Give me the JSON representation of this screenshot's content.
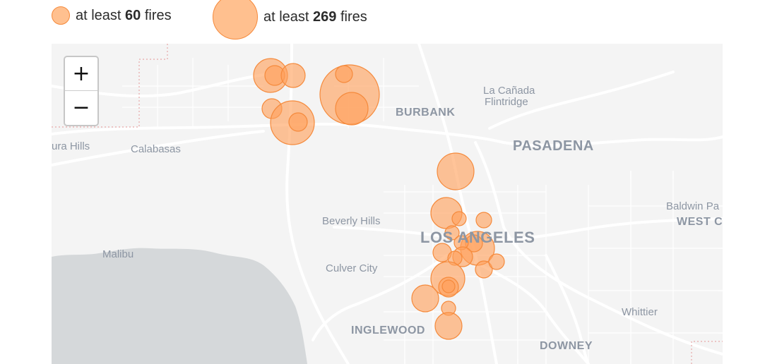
{
  "legend": {
    "items": [
      {
        "prefix": "at least",
        "value": "60",
        "suffix": "fires"
      },
      {
        "prefix": "at least",
        "value": "269",
        "suffix": "fires"
      }
    ],
    "circle_fill": "#ffa55f",
    "circle_stroke": "#f58a3c"
  },
  "map": {
    "controls": {
      "zoom_in": "+",
      "zoom_out": "−"
    },
    "labels": {
      "burbank": "BURBANK",
      "la_canada_1": "La Cañada",
      "la_canada_2": "Flintridge",
      "pasadena": "PASADENA",
      "agoura": "ura Hills",
      "calabasas": "Calabasas",
      "beverly_hills": "Beverly Hills",
      "los_angeles": "LOS ANGELES",
      "baldwin": "Baldwin Pa",
      "west_covina": "WEST C",
      "malibu": "Malibu",
      "culver_city": "Culver City",
      "inglewood": "INGLEWOOD",
      "whittier": "Whittier",
      "downey": "DOWNEY"
    },
    "colors": {
      "land": "#f4f4f4",
      "water": "#d5d8da",
      "roads": "#ffffff",
      "labels": "#8d96a3"
    }
  }
}
